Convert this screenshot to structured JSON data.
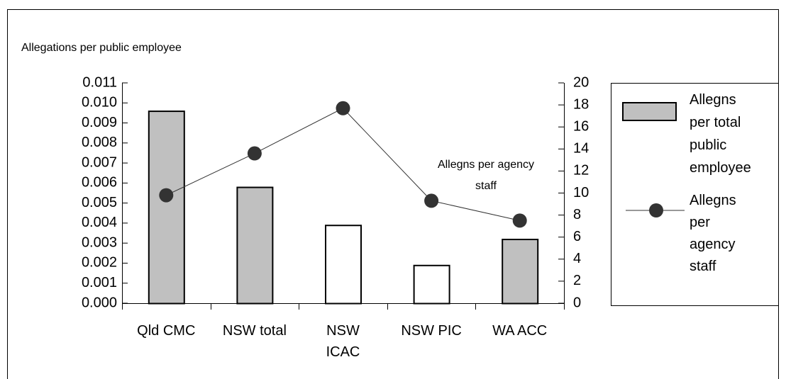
{
  "chart_data": {
    "type": "combo",
    "ylabel": "Allegations per public employee",
    "annotation": "Allegns per agency staff",
    "categories": [
      "Qld CMC",
      "NSW total",
      "NSW ICAC",
      "NSW PIC",
      "WA ACC"
    ],
    "series": [
      {
        "name": "Allegns per total public employee",
        "type": "bar",
        "color": "#c0c0c0",
        "colors": [
          "#c0c0c0",
          "#c0c0c0",
          "#ffffff",
          "#ffffff",
          "#c0c0c0"
        ],
        "values": [
          0.0096,
          0.0058,
          0.0039,
          0.0019,
          0.0032
        ]
      },
      {
        "name": "Allegns per agency staff",
        "type": "line",
        "axis": "y2",
        "color": "#333333",
        "values": [
          9.8,
          13.6,
          17.7,
          9.3,
          7.5
        ]
      }
    ],
    "ylim": [
      0,
      0.011
    ],
    "yticks": [
      {
        "value": 0,
        "label": "0.000"
      },
      {
        "value": 0.001,
        "label": "0.001"
      },
      {
        "value": 0.002,
        "label": "0.002"
      },
      {
        "value": 0.003,
        "label": "0.003"
      },
      {
        "value": 0.004,
        "label": "0.004"
      },
      {
        "value": 0.005,
        "label": "0.005"
      },
      {
        "value": 0.006,
        "label": "0.006"
      },
      {
        "value": 0.007,
        "label": "0.007"
      },
      {
        "value": 0.008,
        "label": "0.008"
      },
      {
        "value": 0.009,
        "label": "0.009"
      },
      {
        "value": 0.01,
        "label": "0.010"
      },
      {
        "value": 0.011,
        "label": "0.011"
      }
    ],
    "y2lim": [
      0,
      20
    ],
    "y2ticks": [
      0,
      2,
      4,
      6,
      8,
      10,
      12,
      14,
      16,
      18,
      20
    ],
    "legend": "right"
  }
}
